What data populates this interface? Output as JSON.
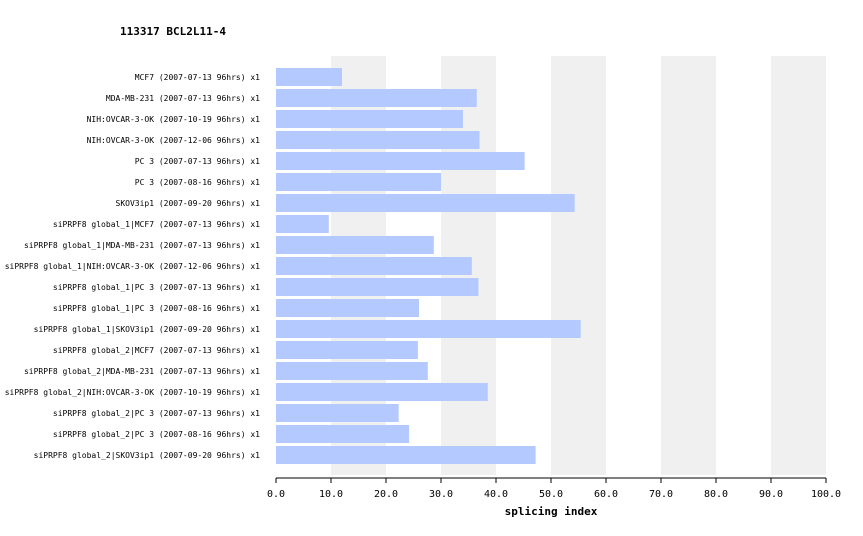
{
  "chart_data": {
    "type": "bar",
    "orientation": "horizontal",
    "title": "113317  BCL2L11-4",
    "xlabel": "splicing index",
    "xlim": [
      0,
      100
    ],
    "xticks": [
      "0.0",
      "10.0",
      "20.0",
      "30.0",
      "40.0",
      "50.0",
      "60.0",
      "70.0",
      "80.0",
      "90.0",
      "100.0"
    ],
    "categories": [
      "MCF7 (2007-07-13 96hrs) x1",
      "MDA-MB-231 (2007-07-13 96hrs) x1",
      "NIH:OVCAR-3-OK (2007-10-19 96hrs) x1",
      "NIH:OVCAR-3-OK (2007-12-06 96hrs) x1",
      "PC 3 (2007-07-13 96hrs) x1",
      "PC 3 (2007-08-16 96hrs) x1",
      "SKOV3ip1 (2007-09-20 96hrs) x1",
      "siPRPF8 global_1|MCF7 (2007-07-13 96hrs) x1",
      "siPRPF8 global_1|MDA-MB-231 (2007-07-13 96hrs) x1",
      "siPRPF8 global_1|NIH:OVCAR-3-OK (2007-12-06 96hrs) x1",
      "siPRPF8 global_1|PC 3 (2007-07-13 96hrs) x1",
      "siPRPF8 global_1|PC 3 (2007-08-16 96hrs) x1",
      "siPRPF8 global_1|SKOV3ip1 (2007-09-20 96hrs) x1",
      "siPRPF8 global_2|MCF7 (2007-07-13 96hrs) x1",
      "siPRPF8 global_2|MDA-MB-231 (2007-07-13 96hrs) x1",
      "siPRPF8 global_2|NIH:OVCAR-3-OK (2007-10-19 96hrs) x1",
      "siPRPF8 global_2|PC 3 (2007-07-13 96hrs) x1",
      "siPRPF8 global_2|PC 3 (2007-08-16 96hrs) x1",
      "siPRPF8 global_2|SKOV3ip1 (2007-09-20 96hrs) x1"
    ],
    "values": [
      12.0,
      36.5,
      34.0,
      37.0,
      45.2,
      30.0,
      54.3,
      9.6,
      28.7,
      35.6,
      36.8,
      26.0,
      55.4,
      25.8,
      27.6,
      38.5,
      22.3,
      24.2,
      47.2
    ],
    "bar_color": "#b3c9ff",
    "band_color": "#f0f0f0",
    "grid": "alternating-bands"
  }
}
